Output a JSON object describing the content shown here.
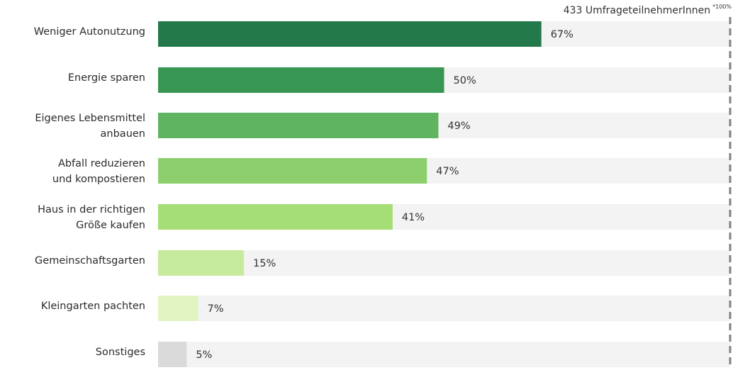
{
  "chart_data": {
    "type": "bar",
    "orientation": "horizontal",
    "annotation": "433 UmfrageteilnehmerInnen",
    "annotation_sup": "*100%",
    "categories": [
      "Weniger Autonutzung",
      "Energie sparen",
      "Eigenes Lebensmittel anbauen",
      "Abfall reduzieren und kompostieren",
      "Haus in der richtigen Größe kaufen",
      "Gemeinschaftsgarten",
      "Kleingarten pachten",
      "Sonstiges"
    ],
    "category_lines": [
      [
        "Weniger Autonutzung"
      ],
      [
        "Energie sparen"
      ],
      [
        "Eigenes Lebensmittel",
        "anbauen"
      ],
      [
        "Abfall reduzieren",
        "und kompostieren"
      ],
      [
        "Haus in der richtigen",
        "Größe kaufen"
      ],
      [
        "Gemeinschaftsgarten"
      ],
      [
        "Kleingarten pachten"
      ],
      [
        "Sonstiges"
      ]
    ],
    "values": [
      67,
      50,
      49,
      47,
      41,
      15,
      7,
      5
    ],
    "value_labels": [
      "67%",
      "50%",
      "49%",
      "47%",
      "41%",
      "15%",
      "7%",
      "5%"
    ],
    "xlim": [
      0,
      100
    ],
    "grid": false,
    "legend": "none",
    "colors": [
      "#23794a",
      "#379752",
      "#5fb460",
      "#8ccf6c",
      "#a5de74",
      "#c7eb9c",
      "#e3f4c3",
      "#dadada"
    ],
    "track_color": "#f3f3f3",
    "reference_line_color": "#808080"
  }
}
